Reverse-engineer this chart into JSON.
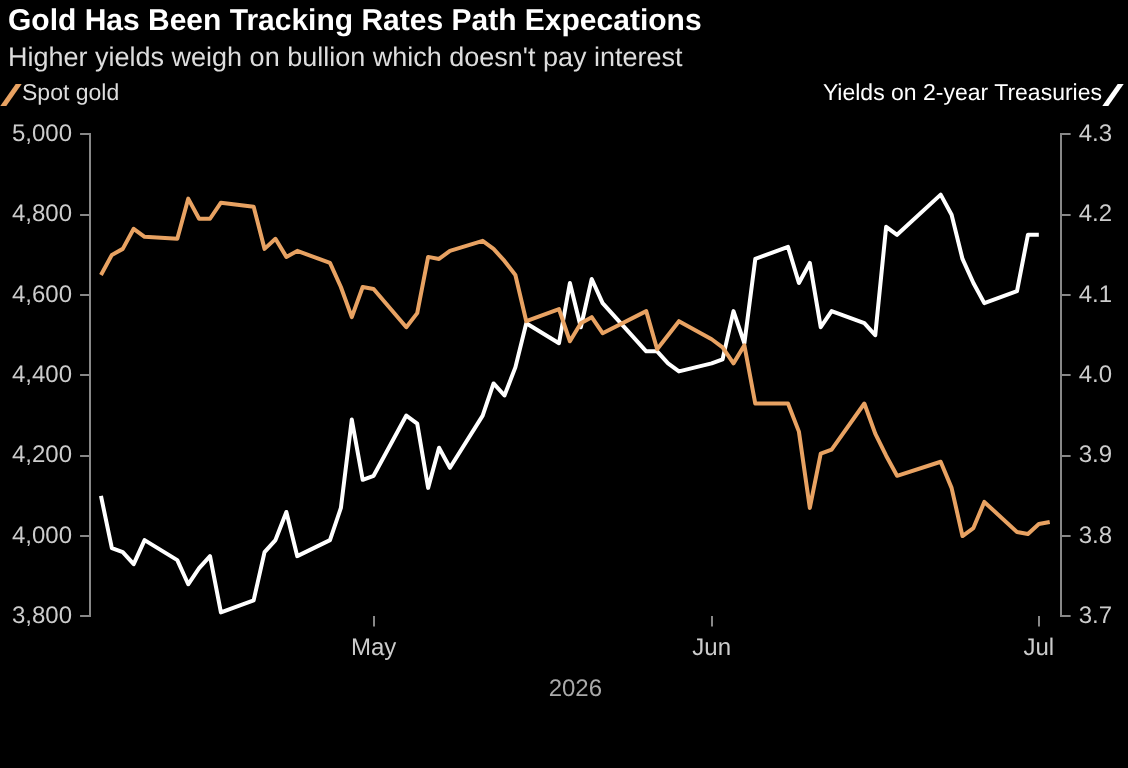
{
  "chart_data": {
    "type": "line",
    "title": "Gold Has Been Tracking Rates Path Expecations",
    "subtitle": "Higher yields weigh on bullion which doesn't pay interest",
    "xlabel": "2026",
    "xlim": [
      "2026-04-05",
      "2026-07-03"
    ],
    "xticks": [
      {
        "value": "2026-05-01",
        "label": "May"
      },
      {
        "value": "2026-06-01",
        "label": "Jun"
      },
      {
        "value": "2026-07-01",
        "label": "Jul"
      }
    ],
    "ylim": [
      3800,
      5000
    ],
    "yticks": [
      {
        "value": 3800,
        "label": "3,800"
      },
      {
        "value": 4000,
        "label": "4,000"
      },
      {
        "value": 4200,
        "label": "4,200"
      },
      {
        "value": 4400,
        "label": "4,400"
      },
      {
        "value": 4600,
        "label": "4,600"
      },
      {
        "value": 4800,
        "label": "4,800"
      },
      {
        "value": 5000,
        "label": "5,000"
      }
    ],
    "y2lim": [
      3.7,
      4.3
    ],
    "y2ticks": [
      3.7,
      3.8,
      3.9,
      {
        "value": 4,
        "label": "4.0"
      },
      4.1,
      4.2,
      4.3
    ],
    "grid": false,
    "legend": "top",
    "marker": "none",
    "line_style": "solid",
    "series": [
      {
        "name": "Spot gold",
        "color": "#e8a262",
        "x": [
          "2026-04-06",
          "2026-04-07",
          "2026-04-08",
          "2026-04-09",
          "2026-04-10",
          "2026-04-13",
          "2026-04-14",
          "2026-04-15",
          "2026-04-16",
          "2026-04-17",
          "2026-04-20",
          "2026-04-21",
          "2026-04-22",
          "2026-04-23",
          "2026-04-24",
          "2026-04-27",
          "2026-04-28",
          "2026-04-29",
          "2026-04-30",
          "2026-05-01",
          "2026-05-04",
          "2026-05-05",
          "2026-05-06",
          "2026-05-07",
          "2026-05-08",
          "2026-05-11",
          "2026-05-12",
          "2026-05-13",
          "2026-05-14",
          "2026-05-15",
          "2026-05-18",
          "2026-05-19",
          "2026-05-20",
          "2026-05-21",
          "2026-05-22",
          "2026-05-26",
          "2026-05-27",
          "2026-05-28",
          "2026-05-29",
          "2026-06-01",
          "2026-06-02",
          "2026-06-03",
          "2026-06-04",
          "2026-06-05",
          "2026-06-08",
          "2026-06-09",
          "2026-06-10",
          "2026-06-11",
          "2026-06-12",
          "2026-06-15",
          "2026-06-16",
          "2026-06-17",
          "2026-06-18",
          "2026-06-22",
          "2026-06-23",
          "2026-06-24",
          "2026-06-25",
          "2026-06-26",
          "2026-06-29",
          "2026-06-30",
          "2026-07-01",
          "2026-07-02"
        ],
        "values": [
          4650,
          4700,
          4715,
          4765,
          4745,
          4740,
          4840,
          4790,
          4790,
          4830,
          4820,
          4715,
          4740,
          4695,
          4710,
          4680,
          4620,
          4545,
          4620,
          4615,
          4520,
          4555,
          4695,
          4690,
          4710,
          4735,
          4715,
          4685,
          4650,
          4535,
          4565,
          4485,
          4530,
          4545,
          4505,
          4560,
          4465,
          4500,
          4535,
          4490,
          4470,
          4430,
          4475,
          4330,
          4330,
          4260,
          4070,
          4205,
          4215,
          4330,
          4255,
          4200,
          4150,
          4185,
          4120,
          4000,
          4020,
          4085,
          4010,
          4005,
          4030,
          4035
        ]
      },
      {
        "name": "Yields on 2-year Treasuries",
        "color": "#ffffff",
        "axis": "y2",
        "x": [
          "2026-04-06",
          "2026-04-07",
          "2026-04-08",
          "2026-04-09",
          "2026-04-10",
          "2026-04-13",
          "2026-04-14",
          "2026-04-15",
          "2026-04-16",
          "2026-04-17",
          "2026-04-20",
          "2026-04-21",
          "2026-04-22",
          "2026-04-23",
          "2026-04-24",
          "2026-04-27",
          "2026-04-28",
          "2026-04-29",
          "2026-04-30",
          "2026-05-01",
          "2026-05-04",
          "2026-05-05",
          "2026-05-06",
          "2026-05-07",
          "2026-05-08",
          "2026-05-11",
          "2026-05-12",
          "2026-05-13",
          "2026-05-14",
          "2026-05-15",
          "2026-05-18",
          "2026-05-19",
          "2026-05-20",
          "2026-05-21",
          "2026-05-22",
          "2026-05-26",
          "2026-05-27",
          "2026-05-28",
          "2026-05-29",
          "2026-06-01",
          "2026-06-02",
          "2026-06-03",
          "2026-06-04",
          "2026-06-05",
          "2026-06-08",
          "2026-06-09",
          "2026-06-10",
          "2026-06-11",
          "2026-06-12",
          "2026-06-15",
          "2026-06-16",
          "2026-06-17",
          "2026-06-18",
          "2026-06-22",
          "2026-06-23",
          "2026-06-24",
          "2026-06-25",
          "2026-06-26",
          "2026-06-29",
          "2026-06-30",
          "2026-07-01"
        ],
        "values": [
          3.85,
          3.785,
          3.78,
          3.765,
          3.795,
          3.77,
          3.74,
          3.76,
          3.775,
          3.705,
          3.72,
          3.78,
          3.795,
          3.83,
          3.775,
          3.795,
          3.835,
          3.945,
          3.87,
          3.875,
          3.95,
          3.94,
          3.86,
          3.91,
          3.885,
          3.95,
          3.99,
          3.975,
          4.01,
          4.065,
          4.04,
          4.115,
          4.06,
          4.12,
          4.09,
          4.03,
          4.03,
          4.015,
          4.005,
          4.015,
          4.02,
          4.08,
          4.04,
          4.145,
          4.16,
          4.115,
          4.14,
          4.06,
          4.08,
          4.065,
          4.05,
          4.185,
          4.175,
          4.225,
          4.2,
          4.145,
          4.115,
          4.09,
          4.105,
          4.175,
          4.175
        ]
      }
    ]
  }
}
